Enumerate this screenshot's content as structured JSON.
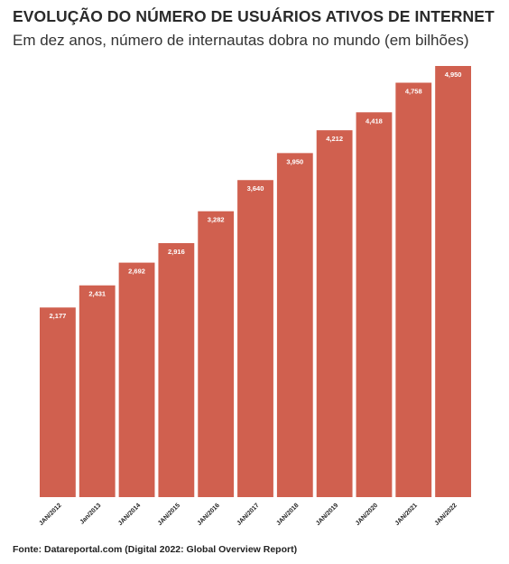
{
  "header": {
    "title": "EVOLUÇÃO DO NÚMERO DE USUÁRIOS ATIVOS DE INTERNET",
    "subtitle": "Em dez anos, número de internautas dobra no mundo (em bilhões)"
  },
  "footer": {
    "source": "Fonte: Datareportal.com (Digital 2022: Global Overview Report)"
  },
  "colors": {
    "bar": "#d0604f",
    "label": "#ffffff",
    "text": "#222222"
  },
  "chart_data": {
    "type": "bar",
    "categories": [
      "JAN/2012",
      "Jan/2013",
      "JAN/2014",
      "JAN/2015",
      "JAN/2016",
      "JAN/2017",
      "JAN/2018",
      "JAN/2019",
      "JAN/2020",
      "JAN/2021",
      "JAN/2022"
    ],
    "values": [
      2.177,
      2.431,
      2.692,
      2.916,
      3.282,
      3.64,
      3.95,
      4.212,
      4.418,
      4.758,
      4.95
    ],
    "data_labels": [
      "2,177",
      "2,431",
      "2,692",
      "2,916",
      "3,282",
      "3,640",
      "3,950",
      "4,212",
      "4,418",
      "4,758",
      "4,950"
    ],
    "ylim": [
      0,
      4.95
    ],
    "grid": false,
    "legend": "none"
  }
}
